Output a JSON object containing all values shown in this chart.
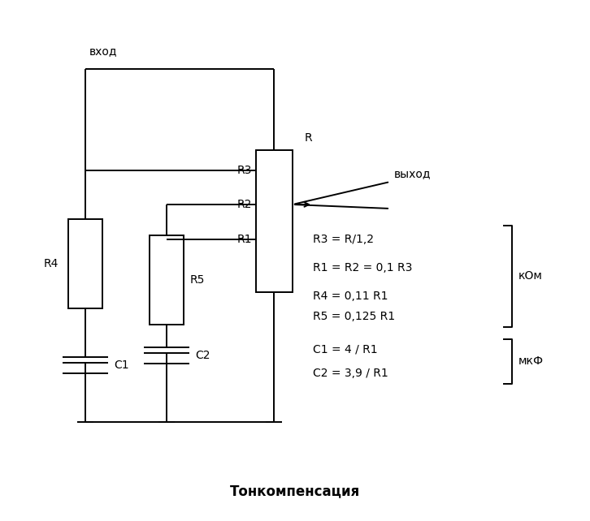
{
  "title": "Тонкомпенсация",
  "label_vhod": "вход",
  "label_vyhod": "выход",
  "label_R": "R",
  "label_R4": "R4",
  "label_R5": "R5",
  "label_R1": "R1",
  "label_R2": "R2",
  "label_R3": "R3",
  "label_C1": "C1",
  "label_C2": "C2",
  "formula_lines": [
    "R3 = R/1,2",
    "R1 = R2 = 0,1 R3",
    "R4 = 0,11 R1",
    "R5 = 0,125 R1",
    "C1 = 4 / R1",
    "C2 = 3,9 / R1"
  ],
  "unit_kOm": "кОм",
  "unit_mkF": "мкФ",
  "bg_color": "#ffffff",
  "line_color": "#000000",
  "text_color": "#000000",
  "title_fontsize": 12,
  "label_fontsize": 10,
  "formula_fontsize": 10
}
